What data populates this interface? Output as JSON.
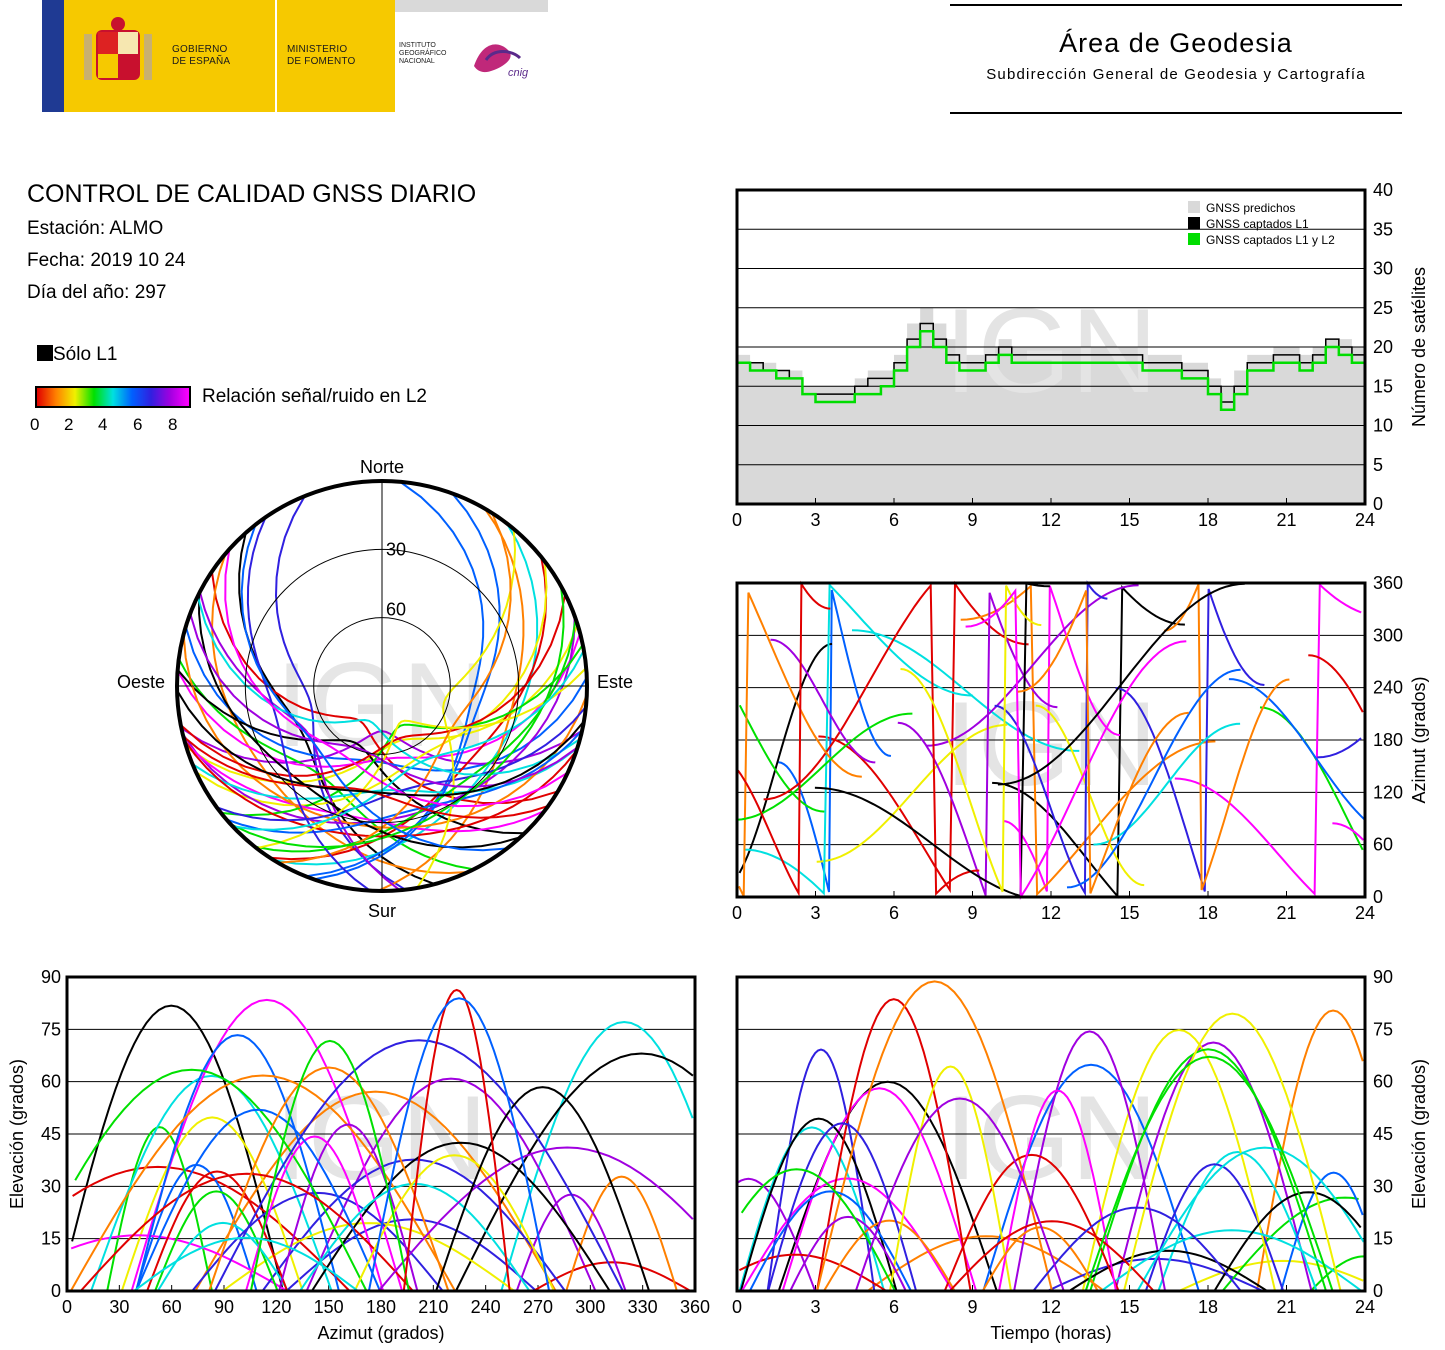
{
  "header": {
    "gobierno": [
      "GOBIERNO",
      "DE ESPAÑA"
    ],
    "ministerio": [
      "MINISTERIO",
      "DE FOMENTO"
    ],
    "instituto": [
      "INSTITUTO",
      "GEOGRÁFICO",
      "NACIONAL"
    ],
    "cnig": "cnig",
    "area_title": "Área de Geodesia",
    "area_subtitle": "Subdirección General de Geodesia y Cartografía"
  },
  "report": {
    "title": "CONTROL DE CALIDAD GNSS DIARIO",
    "station": "Estación: ALMO",
    "date": "Fecha: 2019 10 24",
    "doy": "Día del año: 297"
  },
  "legend": {
    "l1_only": "Sólo L1",
    "snr_label": "Relación señal/ruido en L2",
    "snr_ticks": [
      "0",
      "2",
      "4",
      "6",
      "8"
    ]
  },
  "watermark": "IGN",
  "colors": {
    "predicted": "#d9d9d9",
    "l1": "#000000",
    "l1l2": "#00dd00",
    "snr_scale": [
      "#e00000",
      "#ff8000",
      "#f0f000",
      "#00e000",
      "#00e0e0",
      "#0060ff",
      "#3020e0",
      "#a000e0",
      "#ff00ff"
    ]
  },
  "chart_data": [
    {
      "type": "line",
      "id": "satellites",
      "ylabel": "Número de satélites",
      "ylim": [
        0,
        40
      ],
      "yticks": [
        0,
        5,
        10,
        15,
        20,
        25,
        30,
        35,
        40
      ],
      "xlim": [
        0,
        24
      ],
      "xticks": [
        0,
        3,
        6,
        9,
        12,
        15,
        18,
        21,
        24
      ],
      "legend": [
        "GNSS predichos",
        "GNSS captados L1",
        "GNSS captados L1 y L2"
      ],
      "legend_position": "top-right",
      "grid": true,
      "x": [
        0,
        0.5,
        1,
        1.5,
        2,
        2.5,
        3,
        3.5,
        4,
        4.5,
        5,
        5.5,
        6,
        6.5,
        7,
        7.5,
        8,
        8.5,
        9,
        9.5,
        10,
        10.5,
        11,
        11.5,
        12,
        12.5,
        13,
        13.5,
        14,
        14.5,
        15,
        15.5,
        16,
        16.5,
        17,
        17.5,
        18,
        18.5,
        19,
        19.5,
        20,
        20.5,
        21,
        21.5,
        22,
        22.5,
        23,
        23.5,
        24
      ],
      "series": [
        {
          "name": "GNSS predichos",
          "values": [
            19,
            18,
            18,
            17,
            17,
            15,
            15,
            15,
            15,
            16,
            17,
            17,
            19,
            23,
            25,
            23,
            21,
            19,
            19,
            20,
            21,
            20,
            20,
            20,
            20,
            20,
            20,
            20,
            20,
            20,
            20,
            19,
            19,
            19,
            18,
            18,
            16,
            15,
            17,
            19,
            19,
            20,
            20,
            19,
            20,
            21,
            21,
            20,
            20
          ]
        },
        {
          "name": "GNSS captados L1",
          "values": [
            18,
            18,
            17,
            17,
            16,
            14,
            14,
            14,
            14,
            15,
            16,
            16,
            18,
            21,
            23,
            21,
            19,
            18,
            18,
            19,
            20,
            19,
            19,
            19,
            19,
            19,
            19,
            19,
            19,
            19,
            19,
            18,
            18,
            18,
            17,
            17,
            15,
            13,
            15,
            18,
            18,
            19,
            19,
            18,
            19,
            21,
            20,
            19,
            19
          ]
        },
        {
          "name": "GNSS captados L1 y L2",
          "values": [
            18,
            17,
            17,
            16,
            16,
            14,
            13,
            13,
            13,
            14,
            14,
            15,
            17,
            20,
            22,
            20,
            18,
            17,
            17,
            18,
            19,
            18,
            18,
            18,
            18,
            18,
            18,
            18,
            18,
            18,
            18,
            17,
            17,
            17,
            16,
            16,
            14,
            12,
            14,
            17,
            17,
            18,
            18,
            17,
            18,
            20,
            19,
            18,
            18
          ]
        }
      ]
    },
    {
      "type": "scatter",
      "id": "azimuth",
      "ylabel": "Azimut (grados)",
      "ylim": [
        0,
        360
      ],
      "yticks": [
        0,
        60,
        120,
        180,
        240,
        300,
        360
      ],
      "xlim": [
        0,
        24
      ],
      "xticks": [
        0,
        3,
        6,
        9,
        12,
        15,
        18,
        21,
        24
      ],
      "grid": true
    },
    {
      "type": "scatter",
      "id": "polar",
      "labels": {
        "n": "Norte",
        "s": "Sur",
        "e": "Este",
        "w": "Oeste"
      },
      "rings": [
        "30",
        "60"
      ]
    },
    {
      "type": "scatter",
      "id": "elev_az",
      "xlabel": "Azimut (grados)",
      "ylabel": "Elevación (grados)",
      "xlim": [
        0,
        360
      ],
      "xticks": [
        0,
        30,
        60,
        90,
        120,
        150,
        180,
        210,
        240,
        270,
        300,
        330,
        360
      ],
      "ylim": [
        0,
        90
      ],
      "yticks": [
        0,
        15,
        30,
        45,
        60,
        75,
        90
      ],
      "grid": true
    },
    {
      "type": "scatter",
      "id": "elev_time",
      "xlabel": "Tiempo (horas)",
      "ylabel": "Elevación (grados)",
      "xlim": [
        0,
        24
      ],
      "xticks": [
        0,
        3,
        6,
        9,
        12,
        15,
        18,
        21,
        24
      ],
      "ylim": [
        0,
        90
      ],
      "yticks": [
        0,
        15,
        30,
        45,
        60,
        75,
        90
      ],
      "grid": true
    }
  ]
}
